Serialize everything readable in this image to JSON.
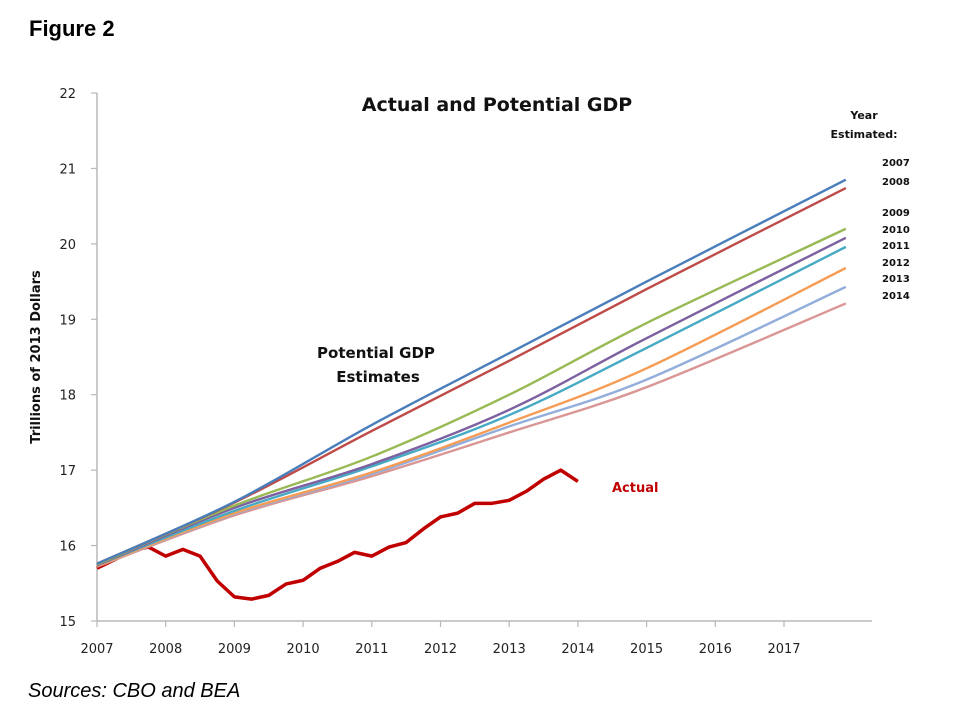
{
  "figure_label": "Figure 2",
  "sources": "Sources: CBO and BEA",
  "chart_data": {
    "type": "line",
    "title": "Actual and Potential GDP",
    "xlabel": "",
    "ylabel": "Trillions of 2013 Dollars",
    "xlim": [
      2007,
      2017.9
    ],
    "ylim": [
      15,
      22
    ],
    "x_ticks": [
      "2007",
      "2008",
      "2009",
      "2010",
      "2011",
      "2012",
      "2013",
      "2014",
      "2015",
      "2016",
      "2017"
    ],
    "y_ticks": [
      "15",
      "16",
      "17",
      "18",
      "19",
      "20",
      "21",
      "22"
    ],
    "grid": false,
    "annotations": {
      "potential_line1": "Potential GDP",
      "potential_line2": "Estimates",
      "actual": "Actual"
    },
    "legend": {
      "title_line1": "Year",
      "title_line2": "Estimated:",
      "placement": "right"
    },
    "series": [
      {
        "name": "2007",
        "color": "#4a7ebb",
        "x": [
          2007,
          2009,
          2011,
          2013,
          2015,
          2017.9
        ],
        "values": [
          15.76,
          16.58,
          17.6,
          18.55,
          19.5,
          20.85
        ]
      },
      {
        "name": "2008",
        "color": "#be4b48",
        "x": [
          2007,
          2009,
          2011,
          2013,
          2015,
          2017.9
        ],
        "values": [
          15.76,
          16.57,
          17.52,
          18.45,
          19.4,
          20.74
        ]
      },
      {
        "name": "2009",
        "color": "#98b954",
        "x": [
          2007,
          2009,
          2011,
          2013,
          2015,
          2017.9
        ],
        "values": [
          15.75,
          16.53,
          17.18,
          18.0,
          18.95,
          20.2
        ]
      },
      {
        "name": "2010",
        "color": "#7d60a0",
        "x": [
          2007,
          2009,
          2011,
          2013,
          2015,
          2017.9
        ],
        "values": [
          15.74,
          16.5,
          17.08,
          17.8,
          18.75,
          20.08
        ]
      },
      {
        "name": "2011",
        "color": "#46aac5",
        "x": [
          2007,
          2009,
          2011,
          2013,
          2015,
          2017.9
        ],
        "values": [
          15.74,
          16.46,
          17.05,
          17.73,
          18.62,
          19.96
        ]
      },
      {
        "name": "2012",
        "color": "#f59d56",
        "x": [
          2007,
          2009,
          2011,
          2013,
          2015,
          2017.9
        ],
        "values": [
          15.73,
          16.43,
          16.97,
          17.63,
          18.35,
          19.68
        ]
      },
      {
        "name": "2013",
        "color": "#93aedb",
        "x": [
          2007,
          2009,
          2011,
          2013,
          2015,
          2017.9
        ],
        "values": [
          15.73,
          16.42,
          16.95,
          17.58,
          18.2,
          19.43
        ]
      },
      {
        "name": "2014",
        "color": "#d99694",
        "x": [
          2007,
          2009,
          2011,
          2013,
          2015,
          2017.9
        ],
        "values": [
          15.72,
          16.4,
          16.92,
          17.5,
          18.1,
          19.21
        ]
      },
      {
        "name": "Actual",
        "color": "#c00000",
        "x": [
          2007.0,
          2007.25,
          2007.5,
          2007.75,
          2008.0,
          2008.25,
          2008.5,
          2008.75,
          2009.0,
          2009.25,
          2009.5,
          2009.75,
          2010.0,
          2010.25,
          2010.5,
          2010.75,
          2011.0,
          2011.25,
          2011.5,
          2011.75,
          2012.0,
          2012.25,
          2012.5,
          2012.75,
          2013.0,
          2013.25,
          2013.5,
          2013.75,
          2014.0
        ],
        "values": [
          15.7,
          15.81,
          15.93,
          15.98,
          15.86,
          15.95,
          15.86,
          15.53,
          15.32,
          15.29,
          15.34,
          15.49,
          15.54,
          15.7,
          15.79,
          15.91,
          15.86,
          15.98,
          16.04,
          16.22,
          16.38,
          16.43,
          16.56,
          16.56,
          16.6,
          16.72,
          16.88,
          17.0,
          16.85
        ]
      }
    ]
  }
}
